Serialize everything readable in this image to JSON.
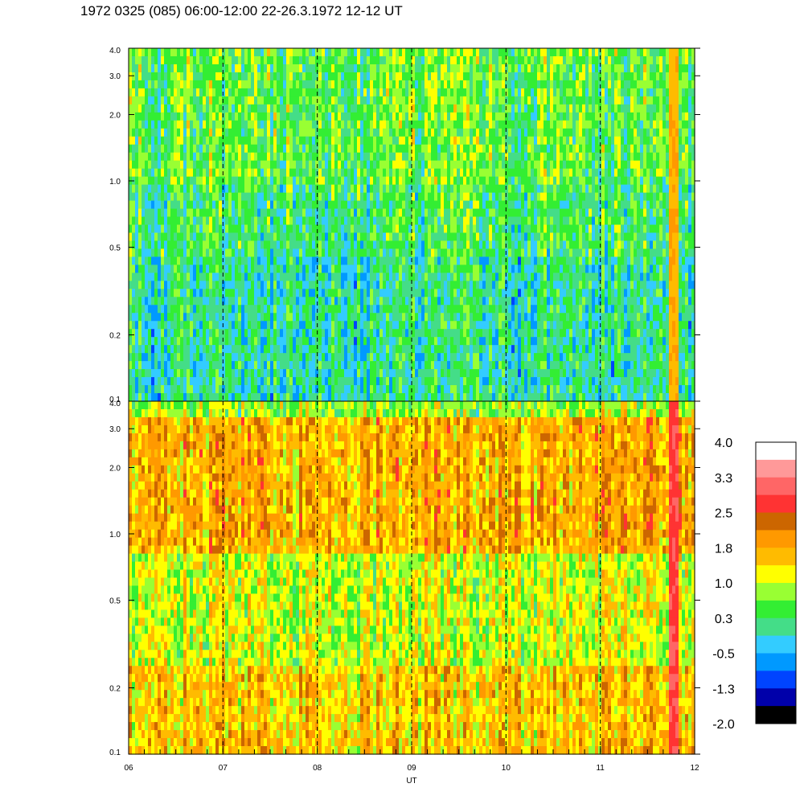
{
  "title": "1972 0325 (085) 06:00-12:00 22-26.3.1972  12-12 UT",
  "chart_data": {
    "type": "heatmap",
    "xlabel": "UT",
    "x_ticks": [
      "06",
      "07",
      "08",
      "09",
      "10",
      "11",
      "12"
    ],
    "xlim": [
      6,
      12
    ],
    "hour_markers": [
      7,
      8,
      9,
      10,
      11
    ],
    "panels": [
      {
        "name": "top",
        "y_scale": "log",
        "ylim": [
          0.1,
          4.0
        ],
        "y_ticks": [
          {
            "v": 4.0,
            "label": "4.0"
          },
          {
            "v": 3.0,
            "label": "3.0"
          },
          {
            "v": 2.0,
            "label": "2.0"
          },
          {
            "v": 1.0,
            "label": "1.0"
          },
          {
            "v": 0.5,
            "label": "0.5"
          },
          {
            "v": 0.2,
            "label": "0.2"
          },
          {
            "v": 0.1,
            "label": "0.1"
          }
        ],
        "typical_level_by_band": [
          {
            "y_range": [
              1.0,
              4.0
            ],
            "level": 0.5
          },
          {
            "y_range": [
              0.45,
              1.0
            ],
            "level": 0.25
          },
          {
            "y_range": [
              0.1,
              0.45
            ],
            "level": 0.0
          }
        ],
        "event": {
          "t_start": 11.72,
          "t_end": 11.82,
          "level": 1.7
        }
      },
      {
        "name": "bottom",
        "y_scale": "log",
        "ylim": [
          0.1,
          4.0
        ],
        "y_ticks": [
          {
            "v": 4.0,
            "label": "4.0"
          },
          {
            "v": 3.0,
            "label": "3.0"
          },
          {
            "v": 2.0,
            "label": "2.0"
          },
          {
            "v": 1.0,
            "label": "1.0"
          },
          {
            "v": 0.5,
            "label": "0.5"
          },
          {
            "v": 0.2,
            "label": "0.2"
          },
          {
            "v": 0.1,
            "label": "0.1"
          }
        ],
        "typical_level_by_band": [
          {
            "y_range": [
              3.3,
              4.0
            ],
            "level": 0.8
          },
          {
            "y_range": [
              0.8,
              3.3
            ],
            "level": 1.7
          },
          {
            "y_range": [
              0.25,
              0.8
            ],
            "level": 1.0
          },
          {
            "y_range": [
              0.1,
              0.25
            ],
            "level": 1.5
          }
        ],
        "event": {
          "t_start": 11.72,
          "t_end": 11.82,
          "level": 2.8
        }
      }
    ],
    "colorbar": {
      "colors_top_to_bottom": [
        "#ffffff",
        "#ff9999",
        "#ff6666",
        "#ff3333",
        "#cc6600",
        "#ff9900",
        "#ffbb00",
        "#ffff00",
        "#99ff33",
        "#33ee33",
        "#44dd88",
        "#33ccff",
        "#0099ff",
        "#0044ff",
        "#0000aa",
        "#000000"
      ],
      "labels": [
        "4.0",
        "3.3",
        "2.5",
        "1.8",
        "1.0",
        "0.3",
        "-0.5",
        "-1.3",
        "-2.0"
      ],
      "range": [
        -2.0,
        4.0
      ]
    }
  }
}
